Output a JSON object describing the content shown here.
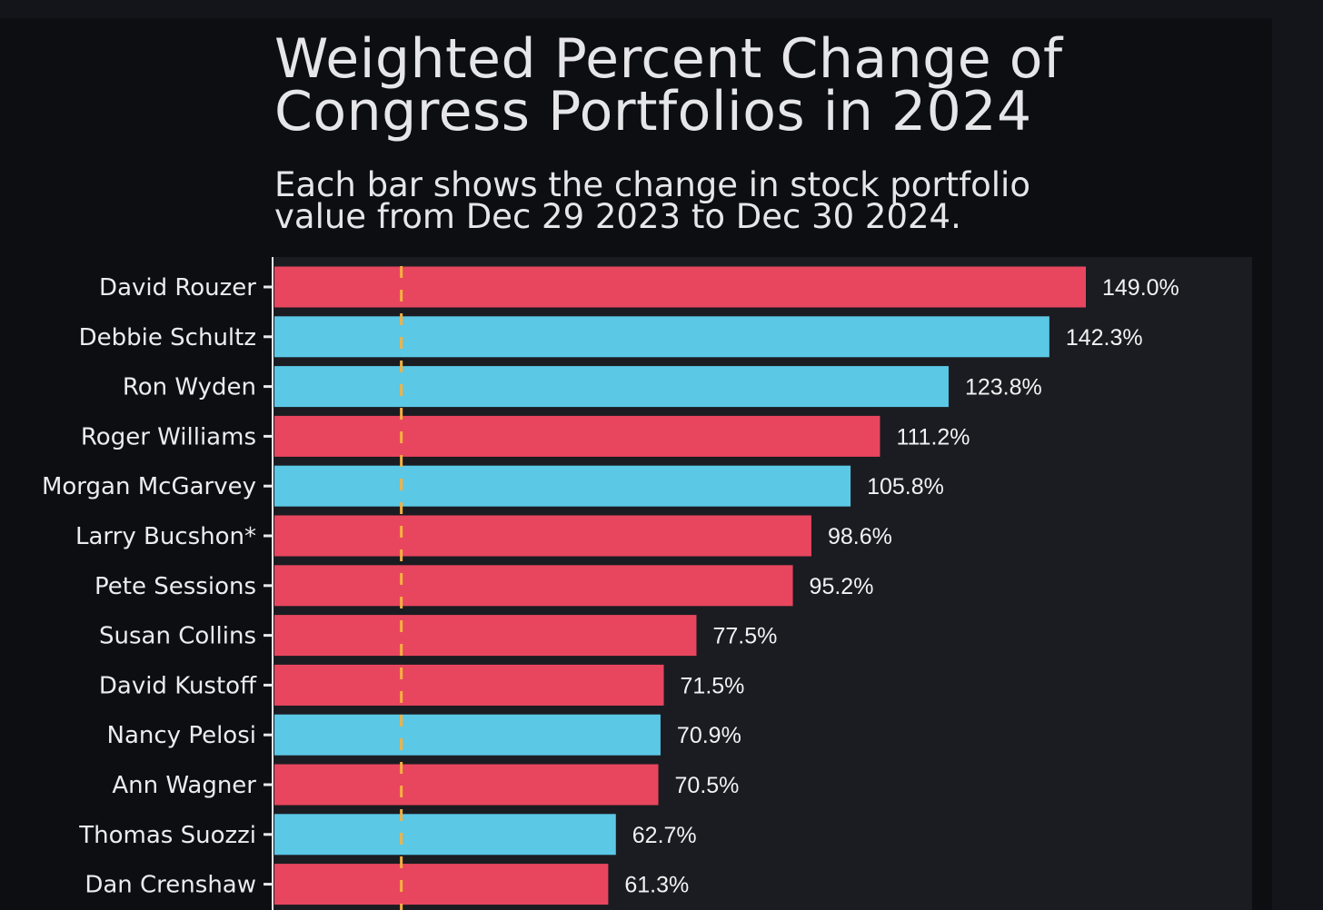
{
  "title_lines": [
    "Weighted Percent Change of",
    "Congress Portfolios in 2024"
  ],
  "subtitle_lines": [
    "Each bar shows the change in stock portfolio",
    "value from Dec 29 2023 to Dec 30 2024."
  ],
  "colors": {
    "republican": "#e8465e",
    "democrat": "#5bc8e6",
    "reference_line": "#f5b041",
    "plot_background": "#1b1c22"
  },
  "chart_data": {
    "type": "bar",
    "orientation": "horizontal",
    "title": "Weighted Percent Change of Congress Portfolios in 2024",
    "subtitle": "Each bar shows the change in stock portfolio value from Dec 29 2023 to Dec 30 2024.",
    "xlabel": "",
    "ylabel": "",
    "xlim": [
      0,
      160
    ],
    "reference_line": 23.3,
    "grid": false,
    "categories": [
      "David Rouzer",
      "Debbie Schultz",
      "Ron Wyden",
      "Roger Williams",
      "Morgan McGarvey",
      "Larry Bucshon*",
      "Pete Sessions",
      "Susan Collins",
      "David Kustoff",
      "Nancy Pelosi",
      "Ann Wagner",
      "Thomas Suozzi",
      "Dan Crenshaw"
    ],
    "values": [
      149.0,
      142.3,
      123.8,
      111.2,
      105.8,
      98.6,
      95.2,
      77.5,
      71.5,
      70.9,
      70.5,
      62.7,
      61.3
    ],
    "value_labels": [
      "149.0%",
      "142.3%",
      "123.8%",
      "111.2%",
      "105.8%",
      "98.6%",
      "95.2%",
      "77.5%",
      "71.5%",
      "70.9%",
      "70.5%",
      "62.7%",
      "61.3%"
    ],
    "party": [
      "republican",
      "democrat",
      "democrat",
      "republican",
      "democrat",
      "republican",
      "republican",
      "republican",
      "republican",
      "democrat",
      "republican",
      "democrat",
      "republican"
    ]
  }
}
